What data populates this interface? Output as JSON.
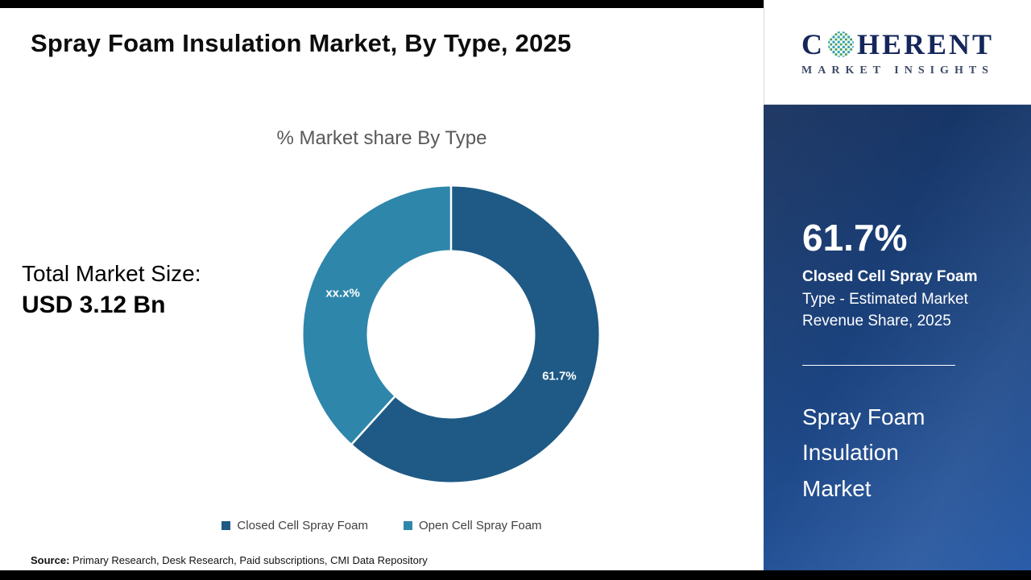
{
  "page": {
    "title": "Spray Foam Insulation Market, By Type, 2025",
    "source_label": "Source:",
    "source_text": " Primary Research, Desk Research, Paid subscriptions, CMI Data Repository"
  },
  "logo": {
    "letter_c": "C",
    "rest": "HERENT",
    "subtitle": "MARKET INSIGHTS"
  },
  "left_panel": {
    "total_label": "Total Market Size:",
    "total_value": "USD 3.12 Bn"
  },
  "chart_data": {
    "type": "pie",
    "donut": true,
    "title": "% Market share By Type",
    "legend_position": "bottom",
    "start_angle_deg": 0,
    "direction": "clockwise",
    "slices": [
      {
        "label": "Closed Cell Spray Foam",
        "value": 61.7,
        "display": "61.7%",
        "color": "#1e5a85"
      },
      {
        "label": "Open Cell Spray Foam",
        "value": 38.3,
        "display": "xx.x%",
        "color": "#2e86ab"
      }
    ]
  },
  "sidebar": {
    "stat_value": "61.7%",
    "stat_bold": "Closed Cell Spray Foam",
    "stat_rest": " Type - Estimated Market Revenue Share, 2025",
    "market_name": "Spray Foam Insulation Market"
  }
}
